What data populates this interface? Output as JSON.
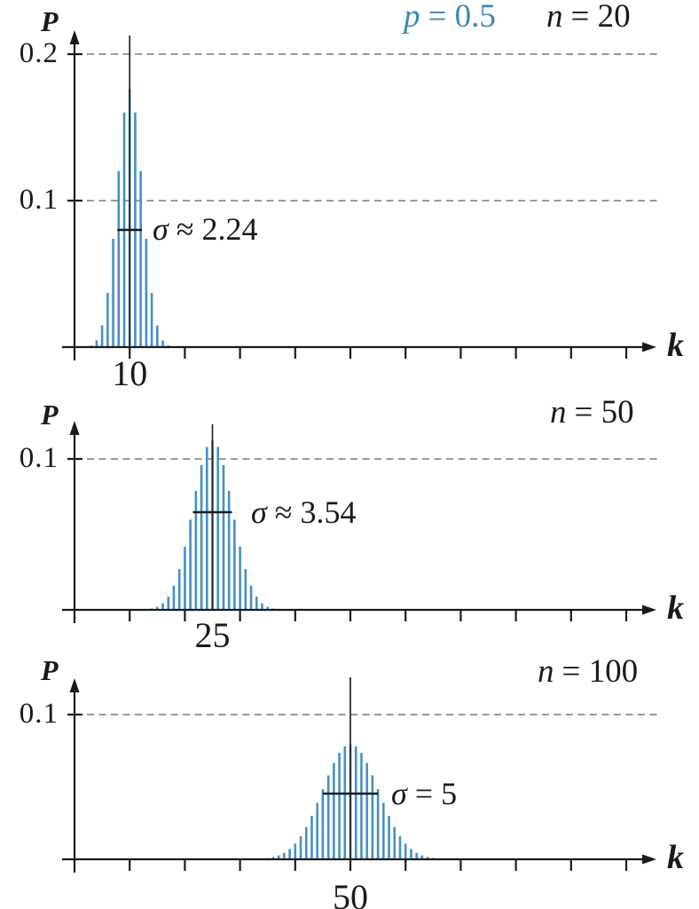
{
  "figure": {
    "description": "Binomial probability distributions for p = 0.5 with n = 20, 50, 100",
    "y_axis_label": "P",
    "x_axis_label": "k",
    "colors": {
      "bar": "#4690c2",
      "accent_text": "#3d87bd",
      "axis": "#1a1a1a",
      "grid": "#8a8a8a",
      "mean_line": "#222222"
    }
  },
  "chart_data": [
    {
      "type": "bar",
      "title": {
        "var": "n",
        "rest": "= 20"
      },
      "p_annotation": {
        "var": "p",
        "rest": "= 0.5"
      },
      "n": 20,
      "p": 0.5,
      "mean": 10,
      "sigma": 2.236,
      "sigma_annotation": {
        "sym": "σ",
        "rest": "≈ 2.24"
      },
      "mean_tick_label": "10",
      "ylabel": "P",
      "xlabel": "k",
      "ylim": [
        0,
        0.22
      ],
      "x_range": [
        0,
        105
      ],
      "x_tick_step": 10,
      "x_tick_max": 100,
      "grid": "dashed-horizontal",
      "legend": "none",
      "y_gridlines": [
        {
          "label": "0.1",
          "value": 0.1
        },
        {
          "label": "0.2",
          "value": 0.2
        }
      ],
      "k_start": 2,
      "pmf": [
        0.00018,
        0.00109,
        0.00462,
        0.01479,
        0.03696,
        0.07393,
        0.12013,
        0.16018,
        0.1762,
        0.16018,
        0.12013,
        0.07393,
        0.03696,
        0.01479,
        0.00462,
        0.00109,
        0.00018
      ]
    },
    {
      "type": "bar",
      "title": {
        "var": "n",
        "rest": "= 50"
      },
      "n": 50,
      "p": 0.5,
      "mean": 25,
      "sigma": 3.536,
      "sigma_annotation": {
        "sym": "σ",
        "rest": "≈ 3.54"
      },
      "mean_tick_label": "25",
      "ylabel": "P",
      "xlabel": "k",
      "ylim": [
        0,
        0.13
      ],
      "x_range": [
        0,
        105
      ],
      "x_tick_step": 10,
      "x_tick_max": 100,
      "grid": "dashed-horizontal",
      "legend": "none",
      "y_gridlines": [
        {
          "label": "0.1",
          "value": 0.1
        }
      ],
      "k_start": 13,
      "pmf": [
        0.00032,
        0.00083,
        0.002,
        0.00437,
        0.00875,
        0.01603,
        0.02701,
        0.04186,
        0.0598,
        0.07883,
        0.09596,
        0.10796,
        0.11228,
        0.10796,
        0.09596,
        0.07883,
        0.0598,
        0.04186,
        0.02701,
        0.01603,
        0.00875,
        0.00437,
        0.002,
        0.00083,
        0.00032
      ]
    },
    {
      "type": "bar",
      "title": {
        "var": "n",
        "rest": "= 100"
      },
      "n": 100,
      "p": 0.5,
      "mean": 50,
      "sigma": 5,
      "sigma_annotation": {
        "sym": "σ",
        "rest": "= 5"
      },
      "mean_tick_label": "50",
      "ylabel": "P",
      "xlabel": "k",
      "ylim": [
        0,
        0.13
      ],
      "x_range": [
        0,
        105
      ],
      "x_tick_step": 10,
      "x_tick_max": 100,
      "grid": "dashed-horizontal",
      "legend": "none",
      "y_gridlines": [
        {
          "label": "0.1",
          "value": 0.1
        }
      ],
      "k_start": 33,
      "pmf": [
        0.00023,
        0.00046,
        0.00086,
        0.00156,
        0.0027,
        0.00447,
        0.00711,
        0.01084,
        0.01587,
        0.02229,
        0.03007,
        0.03895,
        0.04847,
        0.05796,
        0.06659,
        0.07353,
        0.07803,
        0.07959,
        0.07803,
        0.07353,
        0.06659,
        0.05796,
        0.04847,
        0.03895,
        0.03007,
        0.02229,
        0.01587,
        0.01084,
        0.00711,
        0.00447,
        0.0027,
        0.00156,
        0.00086,
        0.00046,
        0.00023
      ]
    }
  ]
}
